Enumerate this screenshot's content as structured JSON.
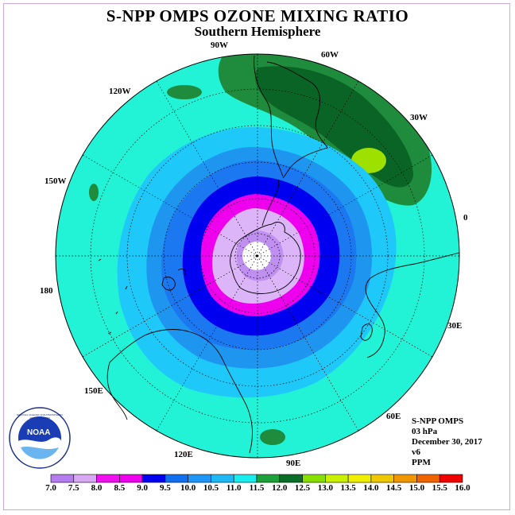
{
  "title": "S-NPP OMPS OZONE MIXING RATIO",
  "subtitle": "Southern Hemisphere",
  "longitude_labels": [
    {
      "label": "90W",
      "name": "lon-label-90w"
    },
    {
      "label": "60W",
      "name": "lon-label-60w"
    },
    {
      "label": "30W",
      "name": "lon-label-30w"
    },
    {
      "label": "0",
      "name": "lon-label-0"
    },
    {
      "label": "30E",
      "name": "lon-label-30e"
    },
    {
      "label": "60E",
      "name": "lon-label-60e"
    },
    {
      "label": "90E",
      "name": "lon-label-90e"
    },
    {
      "label": "120E",
      "name": "lon-label-120e"
    },
    {
      "label": "150E",
      "name": "lon-label-150e"
    },
    {
      "label": "180",
      "name": "lon-label-180"
    },
    {
      "label": "150W",
      "name": "lon-label-150w"
    },
    {
      "label": "120W",
      "name": "lon-label-120w"
    }
  ],
  "info": {
    "instrument": "S-NPP OMPS",
    "level": "03 hPa",
    "date": "December 30, 2017",
    "version": "v6",
    "units": "PPM"
  },
  "logo": {
    "text": "NOAA",
    "ring_text": "NATIONAL OCEANIC AND ATMOSPHERIC ADMINISTRATION"
  },
  "colorbar": {
    "ticks": [
      "7.0",
      "7.5",
      "8.0",
      "8.5",
      "9.0",
      "9.5",
      "10.0",
      "10.5",
      "11.0",
      "11.5",
      "12.0",
      "12.5",
      "13.0",
      "13.5",
      "14.0",
      "14.5",
      "15.0",
      "15.5",
      "16.0"
    ],
    "colors": [
      "#b57cf0",
      "#d8a8f5",
      "#f010f0",
      "#ee00ee",
      "#0000f0",
      "#1070f0",
      "#1e96f5",
      "#1eb8f5",
      "#18ecec",
      "#1ea03a",
      "#0a6e28",
      "#88e000",
      "#c8f000",
      "#f0f000",
      "#f0c800",
      "#f09600",
      "#f06400",
      "#f00000",
      "#8c5a3c"
    ]
  },
  "colors": {
    "ocean_bg": "#22f2d6",
    "level_11_5": "#1e8c3c",
    "level_12_0": "#0a6426",
    "level_12_5": "#9ee000",
    "level_10_5": "#1ec8f8",
    "level_10_0": "#1e96f0",
    "level_9_5": "#1c78f0",
    "level_9_0": "#0000f0",
    "level_8_5": "#ee00ee",
    "level_8_0": "#dcb4f8",
    "level_7_5": "#c090f0",
    "polar_gap": "#ffffff"
  }
}
